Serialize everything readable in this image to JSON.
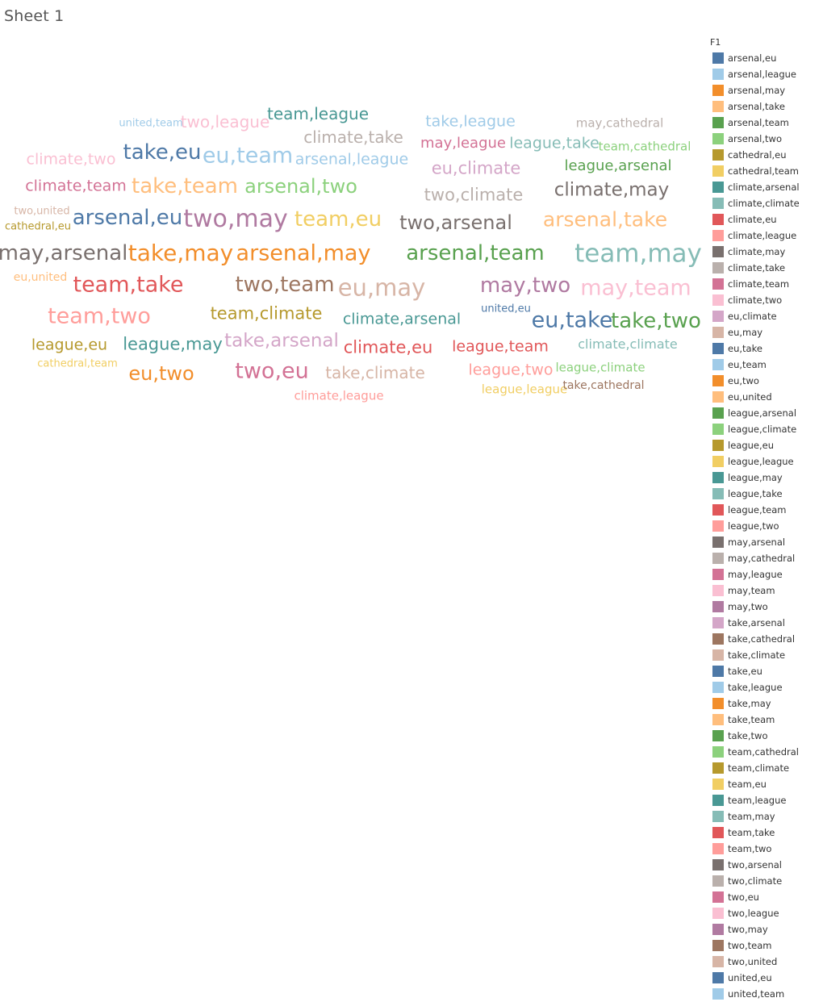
{
  "sheet": {
    "title": "Sheet 1"
  },
  "legend": {
    "title": "F1"
  },
  "chart_data": {
    "type": "word-cloud",
    "color_field": "F1",
    "size_field": "frequency (relative)",
    "items": [
      {
        "label": "arsenal,eu",
        "color": "#4e79a7",
        "size": 26
      },
      {
        "label": "arsenal,league",
        "color": "#a0cbe8",
        "size": 19
      },
      {
        "label": "arsenal,may",
        "color": "#f28e2b",
        "size": 27
      },
      {
        "label": "arsenal,take",
        "color": "#ffbe7d",
        "size": 25
      },
      {
        "label": "arsenal,team",
        "color": "#59a14f",
        "size": 26
      },
      {
        "label": "arsenal,two",
        "color": "#8cd17d",
        "size": 24
      },
      {
        "label": "cathedral,eu",
        "color": "#b6992d",
        "size": 13
      },
      {
        "label": "cathedral,team",
        "color": "#f1ce63",
        "size": 13
      },
      {
        "label": "climate,arsenal",
        "color": "#499894",
        "size": 19
      },
      {
        "label": "climate,climate",
        "color": "#86bcb6",
        "size": 16
      },
      {
        "label": "climate,eu",
        "color": "#e15759",
        "size": 21
      },
      {
        "label": "climate,league",
        "color": "#ff9d9a",
        "size": 15
      },
      {
        "label": "climate,may",
        "color": "#79706e",
        "size": 23
      },
      {
        "label": "climate,take",
        "color": "#bab0ac",
        "size": 20
      },
      {
        "label": "climate,team",
        "color": "#d37295",
        "size": 19
      },
      {
        "label": "climate,two",
        "color": "#fabfd2",
        "size": 19
      },
      {
        "label": "eu,climate",
        "color": "#d4a6c8",
        "size": 21
      },
      {
        "label": "eu,may",
        "color": "#d7b5a6",
        "size": 29
      },
      {
        "label": "eu,take",
        "color": "#4e79a7",
        "size": 27
      },
      {
        "label": "eu,team",
        "color": "#a0cbe8",
        "size": 27
      },
      {
        "label": "eu,two",
        "color": "#f28e2b",
        "size": 24
      },
      {
        "label": "eu,united",
        "color": "#ffbe7d",
        "size": 14
      },
      {
        "label": "league,arsenal",
        "color": "#59a14f",
        "size": 18
      },
      {
        "label": "league,climate",
        "color": "#8cd17d",
        "size": 15
      },
      {
        "label": "league,eu",
        "color": "#b6992d",
        "size": 19
      },
      {
        "label": "league,league",
        "color": "#f1ce63",
        "size": 15
      },
      {
        "label": "league,may",
        "color": "#499894",
        "size": 21
      },
      {
        "label": "league,take",
        "color": "#86bcb6",
        "size": 19
      },
      {
        "label": "league,team",
        "color": "#e15759",
        "size": 19
      },
      {
        "label": "league,two",
        "color": "#ff9d9a",
        "size": 19
      },
      {
        "label": "may,arsenal",
        "color": "#79706e",
        "size": 26
      },
      {
        "label": "may,cathedral",
        "color": "#bab0ac",
        "size": 15
      },
      {
        "label": "may,league",
        "color": "#d37295",
        "size": 18
      },
      {
        "label": "may,team",
        "color": "#fabfd2",
        "size": 27
      },
      {
        "label": "may,two",
        "color": "#b07aa1",
        "size": 26
      },
      {
        "label": "take,arsenal",
        "color": "#d4a6c8",
        "size": 23
      },
      {
        "label": "take,cathedral",
        "color": "#9d7660",
        "size": 14
      },
      {
        "label": "take,climate",
        "color": "#d7b5a6",
        "size": 20
      },
      {
        "label": "take,eu",
        "color": "#4e79a7",
        "size": 26
      },
      {
        "label": "take,league",
        "color": "#a0cbe8",
        "size": 19
      },
      {
        "label": "take,may",
        "color": "#f28e2b",
        "size": 28
      },
      {
        "label": "take,team",
        "color": "#ffbe7d",
        "size": 26
      },
      {
        "label": "take,two",
        "color": "#59a14f",
        "size": 26
      },
      {
        "label": "team,cathedral",
        "color": "#8cd17d",
        "size": 15
      },
      {
        "label": "team,climate",
        "color": "#b6992d",
        "size": 21
      },
      {
        "label": "team,eu",
        "color": "#f1ce63",
        "size": 26
      },
      {
        "label": "team,league",
        "color": "#499894",
        "size": 20
      },
      {
        "label": "team,may",
        "color": "#86bcb6",
        "size": 31
      },
      {
        "label": "team,take",
        "color": "#e15759",
        "size": 27
      },
      {
        "label": "team,two",
        "color": "#ff9d9a",
        "size": 27
      },
      {
        "label": "two,arsenal",
        "color": "#79706e",
        "size": 24
      },
      {
        "label": "two,climate",
        "color": "#bab0ac",
        "size": 21
      },
      {
        "label": "two,eu",
        "color": "#d37295",
        "size": 27
      },
      {
        "label": "two,league",
        "color": "#fabfd2",
        "size": 20
      },
      {
        "label": "two,may",
        "color": "#b07aa1",
        "size": 30
      },
      {
        "label": "two,team",
        "color": "#9d7660",
        "size": 26
      },
      {
        "label": "two,united",
        "color": "#d7b5a6",
        "size": 13
      },
      {
        "label": "united,eu",
        "color": "#4e79a7",
        "size": 13
      },
      {
        "label": "united,team",
        "color": "#a0cbe8",
        "size": 13
      }
    ]
  }
}
